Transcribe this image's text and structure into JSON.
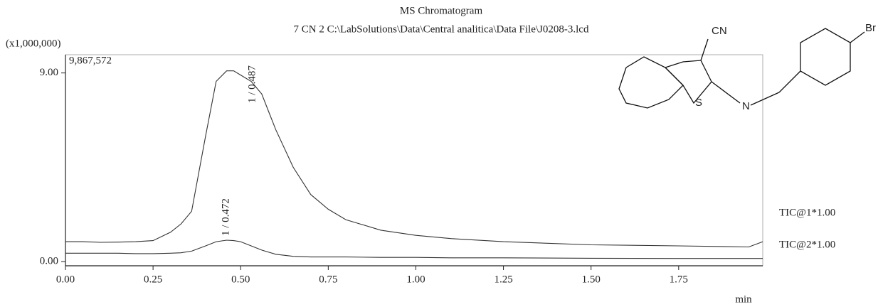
{
  "chart_data": {
    "type": "line",
    "title": "MS Chromatogram",
    "subtitle": "7 CN 2 C:\\LabSolutions\\Data\\Central analitica\\Data File\\J0208-3.lcd",
    "y_unit_label": "(x1,000,000)",
    "y_max_label": "9,867,572",
    "x_label": "min",
    "x": [
      0,
      0.05,
      0.1,
      0.15,
      0.2,
      0.25,
      0.3,
      0.33,
      0.36,
      0.4,
      0.43,
      0.46,
      0.48,
      0.5,
      0.53,
      0.56,
      0.6,
      0.65,
      0.7,
      0.75,
      0.8,
      0.9,
      1.0,
      1.1,
      1.25,
      1.5,
      1.75,
      1.95,
      1.99
    ],
    "series": [
      {
        "name": "TIC@1*1.00",
        "color": "#333333",
        "values": [
          0.95,
          0.95,
          0.92,
          0.93,
          0.95,
          1.0,
          1.4,
          1.8,
          2.4,
          6.0,
          8.6,
          9.1,
          9.1,
          8.9,
          8.6,
          8.0,
          6.3,
          4.5,
          3.2,
          2.5,
          2.0,
          1.5,
          1.25,
          1.1,
          0.95,
          0.8,
          0.75,
          0.7,
          0.95
        ]
      },
      {
        "name": "TIC@2*1.00",
        "color": "#333333",
        "values": [
          0.4,
          0.4,
          0.4,
          0.4,
          0.38,
          0.38,
          0.4,
          0.42,
          0.5,
          0.75,
          0.95,
          1.02,
          1.0,
          0.95,
          0.75,
          0.55,
          0.35,
          0.25,
          0.22,
          0.22,
          0.22,
          0.2,
          0.2,
          0.18,
          0.18,
          0.16,
          0.15,
          0.15,
          0.15
        ]
      }
    ],
    "annotations": [
      "1 / 0.487",
      "1 / 0.472"
    ],
    "xlim": [
      0,
      1.99
    ],
    "ylim": [
      -0.2,
      9.87
    ],
    "xticks": [
      {
        "value": 0,
        "label": "0.00"
      },
      {
        "value": 0.25,
        "label": "0.25"
      },
      {
        "value": 0.5,
        "label": "0.50"
      },
      {
        "value": 0.75,
        "label": "0.75"
      },
      {
        "value": 1,
        "label": "1.00"
      },
      {
        "value": 1.25,
        "label": "1.25"
      },
      {
        "value": 1.5,
        "label": "1.50"
      },
      {
        "value": 1.75,
        "label": "1.75"
      }
    ],
    "yticks": [
      {
        "value": 0,
        "label": "0.00"
      },
      {
        "value": 9,
        "label": "9.00"
      }
    ],
    "structure_labels": [
      "CN",
      "N",
      "S",
      "Br"
    ]
  }
}
